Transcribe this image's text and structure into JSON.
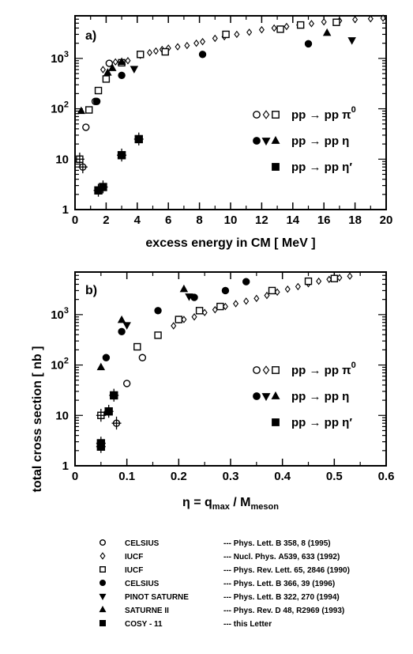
{
  "figure": {
    "ylabel": "total cross section [ nb ]"
  },
  "panel_a": {
    "label": "a)",
    "xlabel": "excess energy in CM [ MeV ]"
  },
  "panel_b": {
    "label": "b)",
    "xlabel_main": "η = q",
    "xlabel_sub1": "max",
    "xlabel_mid": " / M",
    "xlabel_sub2": "meson"
  },
  "legend_entries": [
    {
      "symbols": "○◇□",
      "text": "pp → pp π",
      "sup": "0"
    },
    {
      "symbols": "●▼▲",
      "text": "pp → pp η",
      "sup": ""
    },
    {
      "symbols": "■",
      "text": "pp → pp η′",
      "sup": ""
    }
  ],
  "references": [
    {
      "marker": "circle-open",
      "facility": "CELSIUS",
      "prefix": "--- Phys. Lett. B ",
      "volume": "358",
      "suffix": ", 8 (1995)"
    },
    {
      "marker": "diamond-open",
      "facility": "IUCF",
      "prefix": "--- Nucl. Phys. ",
      "volume": "A539",
      "suffix": ", 633 (1992)"
    },
    {
      "marker": "square-open",
      "facility": "IUCF",
      "prefix": "--- Phys. Rev. Lett. ",
      "volume": "65",
      "suffix": ", 2846 (1990)"
    },
    {
      "marker": "circle-filled",
      "facility": "CELSIUS",
      "prefix": "--- Phys. Lett. B ",
      "volume": "366",
      "suffix": ", 39 (1996)"
    },
    {
      "marker": "triangle-down-filled",
      "facility": "PINOT SATURNE",
      "prefix": "--- Phys. Lett. B ",
      "volume": "322",
      "suffix": ", 270 (1994)"
    },
    {
      "marker": "triangle-up-filled",
      "facility": "SATURNE II",
      "prefix": "--- Phys. Rev. D ",
      "volume": "48",
      "suffix": ", R2969 (1993)"
    },
    {
      "marker": "square-filled",
      "facility": "COSY - 11",
      "prefix": "--- this Letter",
      "volume": "",
      "suffix": ""
    }
  ],
  "chart_data": [
    {
      "type": "scatter",
      "title": "a)",
      "xlabel": "excess energy in CM [ MeV ]",
      "ylabel": "total cross section [ nb ]",
      "xlim": [
        0,
        20
      ],
      "ylim": [
        1,
        7000
      ],
      "yscale": "log",
      "x_ticks": [
        "0",
        "2",
        "4",
        "6",
        "8",
        "10",
        "12",
        "14",
        "16",
        "18",
        "20"
      ],
      "y_ticks": [
        "1",
        "10",
        "10^2",
        "10^3"
      ],
      "legend_position": "right",
      "series": [
        {
          "name": "CELSIUS Phys. Lett. B 358",
          "marker": "circle-open",
          "points": [
            [
              0.5,
              7
            ],
            [
              0.7,
              43
            ],
            [
              1.3,
              140
            ],
            [
              2.2,
              800
            ]
          ]
        },
        {
          "name": "IUCF Nucl. Phys. A539",
          "marker": "diamond-open",
          "points": [
            [
              1.8,
              600
            ],
            [
              2.6,
              850
            ],
            [
              3.4,
              900
            ],
            [
              4.2,
              1150
            ],
            [
              4.8,
              1300
            ],
            [
              5.2,
              1400
            ],
            [
              5.6,
              1500
            ],
            [
              6.0,
              1600
            ],
            [
              6.6,
              1700
            ],
            [
              7.2,
              1800
            ],
            [
              7.8,
              2000
            ],
            [
              8.2,
              2150
            ],
            [
              9.0,
              2500
            ],
            [
              9.6,
              2700
            ],
            [
              10.4,
              3000
            ],
            [
              11.2,
              3300
            ],
            [
              12.0,
              3700
            ],
            [
              12.8,
              4000
            ],
            [
              13.6,
              4300
            ],
            [
              14.4,
              4600
            ],
            [
              15.2,
              4900
            ],
            [
              16.0,
              5300
            ],
            [
              17.0,
              5600
            ],
            [
              18.0,
              5900
            ],
            [
              19.0,
              6100
            ],
            [
              19.8,
              6300
            ]
          ]
        },
        {
          "name": "IUCF Phys. Rev. Lett. 65",
          "marker": "square-open",
          "points": [
            [
              0.3,
              10
            ],
            [
              0.9,
              95
            ],
            [
              1.5,
              230
            ],
            [
              2.0,
              390
            ],
            [
              3.0,
              820
            ],
            [
              4.2,
              1200
            ],
            [
              5.8,
              1350
            ],
            [
              9.7,
              3000
            ],
            [
              13.2,
              3800
            ],
            [
              14.5,
              4600
            ],
            [
              16.8,
              5200
            ]
          ]
        },
        {
          "name": "CELSIUS Phys. Lett. B 366",
          "marker": "circle-filled",
          "points": [
            [
              1.4,
              140
            ],
            [
              3.0,
              460
            ],
            [
              8.2,
              1200
            ],
            [
              15.0,
              1950
            ]
          ]
        },
        {
          "name": "PINOT SATURNE",
          "marker": "triangle-down-filled",
          "points": [
            [
              3.8,
              620
            ],
            [
              17.8,
              2300
            ]
          ]
        },
        {
          "name": "SATURNE II",
          "marker": "triangle-up-filled",
          "points": [
            [
              0.4,
              90
            ],
            [
              2.1,
              520
            ],
            [
              2.4,
              640
            ],
            [
              3.0,
              850
            ],
            [
              16.2,
              3200
            ]
          ]
        },
        {
          "name": "COSY - 11",
          "marker": "square-filled",
          "points": [
            [
              1.5,
              2.4
            ],
            [
              1.8,
              2.8
            ],
            [
              3.0,
              12
            ],
            [
              4.1,
              25
            ]
          ]
        }
      ]
    },
    {
      "type": "scatter",
      "title": "b)",
      "xlabel": "η = q_max / M_meson",
      "ylabel": "total cross section [ nb ]",
      "xlim": [
        0,
        0.6
      ],
      "ylim": [
        1,
        7000
      ],
      "yscale": "log",
      "x_ticks": [
        "0",
        "0.1",
        "0.2",
        "0.3",
        "0.4",
        "0.5",
        "0.6"
      ],
      "y_ticks": [
        "1",
        "10",
        "10^2",
        "10^3"
      ],
      "legend_position": "right",
      "series": [
        {
          "name": "CELSIUS Phys. Lett. B 358",
          "marker": "circle-open",
          "points": [
            [
              0.08,
              7
            ],
            [
              0.1,
              43
            ],
            [
              0.13,
              140
            ],
            [
              0.2,
              800
            ]
          ]
        },
        {
          "name": "IUCF Nucl. Phys. A539",
          "marker": "diamond-open",
          "points": [
            [
              0.19,
              600
            ],
            [
              0.21,
              800
            ],
            [
              0.23,
              900
            ],
            [
              0.25,
              1100
            ],
            [
              0.27,
              1250
            ],
            [
              0.29,
              1450
            ],
            [
              0.31,
              1650
            ],
            [
              0.33,
              1850
            ],
            [
              0.35,
              2100
            ],
            [
              0.37,
              2400
            ],
            [
              0.39,
              2800
            ],
            [
              0.41,
              3200
            ],
            [
              0.43,
              3600
            ],
            [
              0.45,
              4100
            ],
            [
              0.47,
              4600
            ],
            [
              0.49,
              5000
            ],
            [
              0.51,
              5400
            ],
            [
              0.53,
              5800
            ]
          ]
        },
        {
          "name": "IUCF Phys. Rev. Lett. 65",
          "marker": "square-open",
          "points": [
            [
              0.05,
              10
            ],
            [
              0.12,
              230
            ],
            [
              0.16,
              390
            ],
            [
              0.2,
              800
            ],
            [
              0.24,
              1200
            ],
            [
              0.28,
              1450
            ],
            [
              0.38,
              3000
            ],
            [
              0.45,
              4600
            ],
            [
              0.5,
              5200
            ]
          ]
        },
        {
          "name": "CELSIUS Phys. Lett. B 366",
          "marker": "circle-filled",
          "points": [
            [
              0.06,
              140
            ],
            [
              0.09,
              460
            ],
            [
              0.16,
              1200
            ],
            [
              0.23,
              2200
            ],
            [
              0.29,
              3000
            ],
            [
              0.33,
              4500
            ]
          ]
        },
        {
          "name": "PINOT SATURNE",
          "marker": "triangle-down-filled",
          "points": [
            [
              0.1,
              620
            ],
            [
              0.22,
              2300
            ]
          ]
        },
        {
          "name": "SATURNE II",
          "marker": "triangle-up-filled",
          "points": [
            [
              0.05,
              90
            ],
            [
              0.09,
              780
            ],
            [
              0.21,
              3200
            ]
          ]
        },
        {
          "name": "COSY - 11",
          "marker": "square-filled",
          "points": [
            [
              0.05,
              2.4
            ],
            [
              0.05,
              2.8
            ],
            [
              0.065,
              12
            ],
            [
              0.075,
              25
            ]
          ]
        }
      ]
    }
  ]
}
